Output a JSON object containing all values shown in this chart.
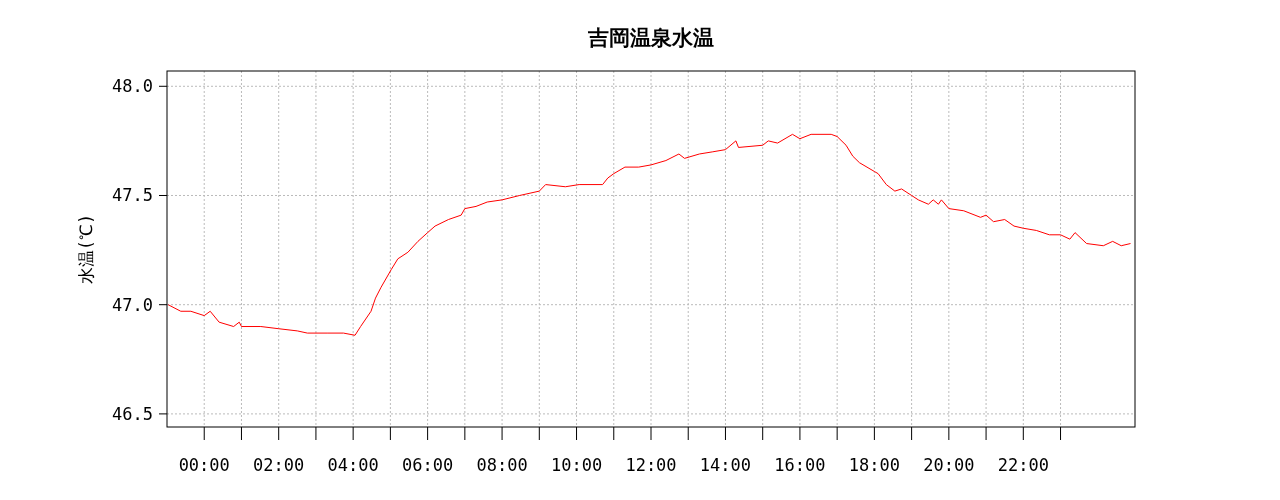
{
  "chart_data": {
    "type": "line",
    "title": "吉岡温泉水温",
    "ylabel": "水温(℃)",
    "x": [
      -0.97,
      -0.63,
      -0.36,
      0,
      0.16,
      0.4,
      0.79,
      0.94,
      1,
      1.52,
      2,
      2.5,
      2.77,
      3.3,
      3.74,
      4.05,
      4.2,
      4.48,
      4.6,
      4.75,
      5.02,
      5.2,
      5.47,
      5.74,
      6.0,
      6.2,
      6.56,
      6.9,
      7.0,
      7.3,
      7.6,
      8,
      8.47,
      9,
      9.17,
      9.7,
      10.07,
      10.7,
      10.84,
      11,
      11.3,
      11.67,
      12,
      12.4,
      12.75,
      12.9,
      13.3,
      13.66,
      14,
      14.28,
      14.35,
      15,
      15.15,
      15.4,
      15.8,
      16,
      16.3,
      16.84,
      17,
      17.24,
      17.42,
      17.6,
      18,
      18.1,
      18.32,
      18.55,
      18.73,
      19,
      19.18,
      19.45,
      19.58,
      19.72,
      19.8,
      20,
      20.4,
      20.85,
      21,
      21.2,
      21.5,
      21.75,
      22,
      22.35,
      22.7,
      23,
      23.25,
      23.39,
      23.7,
      24.15,
      24.4,
      24.63,
      24.88
    ],
    "series": [
      {
        "color": "#ff0000",
        "values": [
          47.0,
          46.97,
          46.97,
          46.95,
          46.97,
          46.92,
          46.9,
          46.92,
          46.9,
          46.9,
          46.89,
          46.88,
          46.87,
          46.87,
          46.87,
          46.86,
          46.9,
          46.97,
          47.03,
          47.08,
          47.16,
          47.21,
          47.24,
          47.29,
          47.33,
          47.36,
          47.39,
          47.41,
          47.44,
          47.45,
          47.47,
          47.48,
          47.5,
          47.52,
          47.55,
          47.54,
          47.55,
          47.55,
          47.58,
          47.6,
          47.63,
          47.63,
          47.64,
          47.66,
          47.69,
          47.67,
          47.69,
          47.7,
          47.71,
          47.75,
          47.72,
          47.73,
          47.75,
          47.74,
          47.78,
          47.76,
          47.78,
          47.78,
          47.77,
          47.73,
          47.68,
          47.65,
          47.61,
          47.6,
          47.55,
          47.52,
          47.53,
          47.5,
          47.48,
          47.46,
          47.48,
          47.46,
          47.48,
          47.44,
          47.43,
          47.4,
          47.41,
          47.38,
          47.39,
          47.36,
          47.35,
          47.34,
          47.32,
          47.32,
          47.3,
          47.33,
          47.28,
          47.27,
          47.29,
          47.27,
          47.28
        ]
      }
    ],
    "xlim": [
      -1,
      25
    ],
    "ylim": [
      46.44,
      48.07
    ],
    "xticks": [
      {
        "value": 0,
        "label": "00:00"
      },
      {
        "value": 1,
        "label": null
      },
      {
        "value": 2,
        "label": "02:00"
      },
      {
        "value": 3,
        "label": null
      },
      {
        "value": 4,
        "label": "04:00"
      },
      {
        "value": 5,
        "label": null
      },
      {
        "value": 6,
        "label": "06:00"
      },
      {
        "value": 7,
        "label": null
      },
      {
        "value": 8,
        "label": "08:00"
      },
      {
        "value": 9,
        "label": null
      },
      {
        "value": 10,
        "label": "10:00"
      },
      {
        "value": 11,
        "label": null
      },
      {
        "value": 12,
        "label": "12:00"
      },
      {
        "value": 13,
        "label": null
      },
      {
        "value": 14,
        "label": "14:00"
      },
      {
        "value": 15,
        "label": null
      },
      {
        "value": 16,
        "label": "16:00"
      },
      {
        "value": 17,
        "label": null
      },
      {
        "value": 18,
        "label": "18:00"
      },
      {
        "value": 19,
        "label": null
      },
      {
        "value": 20,
        "label": "20:00"
      },
      {
        "value": 21,
        "label": null
      },
      {
        "value": 22,
        "label": "22:00"
      },
      {
        "value": 23,
        "label": null
      }
    ],
    "yticks": [
      {
        "value": 46.5,
        "label": "46.5"
      },
      {
        "value": 47,
        "label": "47.0"
      },
      {
        "value": 47.5,
        "label": "47.5"
      },
      {
        "value": 48,
        "label": "48.0"
      }
    ],
    "grid": true,
    "marker": "none",
    "line_style": "solid"
  }
}
